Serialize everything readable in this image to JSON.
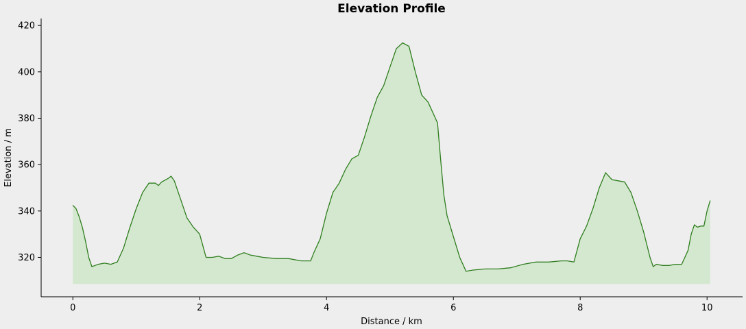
{
  "chart_data": {
    "type": "area",
    "title": "Elevation Profile",
    "xlabel": "Distance / km",
    "ylabel": "Elevation / m",
    "xlim": [
      -0.5,
      10.56
    ],
    "ylim": [
      303,
      423
    ],
    "baseline": 308.5,
    "xticks": [
      0,
      2,
      4,
      6,
      8,
      10
    ],
    "yticks": [
      320,
      340,
      360,
      380,
      400,
      420
    ],
    "grid": false,
    "line_color": "#2e7d1e",
    "fill_color": "#d4e8cf",
    "x": [
      0,
      0.05,
      0.1,
      0.15,
      0.2,
      0.25,
      0.3,
      0.35,
      0.4,
      0.5,
      0.6,
      0.7,
      0.8,
      0.9,
      1.0,
      1.1,
      1.2,
      1.3,
      1.35,
      1.4,
      1.5,
      1.55,
      1.6,
      1.7,
      1.8,
      1.9,
      2.0,
      2.05,
      2.1,
      2.2,
      2.3,
      2.4,
      2.5,
      2.6,
      2.7,
      2.8,
      2.9,
      3.0,
      3.2,
      3.4,
      3.6,
      3.75,
      3.8,
      3.9,
      4.0,
      4.1,
      4.2,
      4.3,
      4.4,
      4.5,
      4.6,
      4.7,
      4.8,
      4.9,
      5.0,
      5.1,
      5.2,
      5.3,
      5.4,
      5.5,
      5.6,
      5.7,
      5.75,
      5.8,
      5.85,
      5.9,
      6.0,
      6.1,
      6.2,
      6.3,
      6.5,
      6.7,
      6.9,
      7.1,
      7.3,
      7.5,
      7.7,
      7.8,
      7.9,
      8.0,
      8.1,
      8.2,
      8.3,
      8.4,
      8.5,
      8.6,
      8.7,
      8.8,
      8.9,
      9.0,
      9.1,
      9.15,
      9.2,
      9.3,
      9.4,
      9.5,
      9.6,
      9.7,
      9.75,
      9.8,
      9.85,
      9.9,
      9.95,
      10.0,
      10.05
    ],
    "values": [
      342.5,
      341,
      337.5,
      333,
      327,
      320,
      316,
      316.5,
      317,
      317.5,
      317,
      318,
      324,
      333,
      341,
      348,
      352,
      352,
      351,
      352.5,
      354,
      355,
      353,
      345,
      337,
      333,
      330,
      325,
      320,
      320,
      320.5,
      319.5,
      319.5,
      321,
      322,
      321,
      320.5,
      320,
      319.5,
      319.5,
      318.5,
      318.5,
      322,
      328,
      339,
      348,
      352,
      358,
      362.5,
      364,
      372,
      381,
      389,
      394,
      402,
      410,
      412.5,
      411,
      400,
      390,
      387,
      381,
      378,
      362,
      347,
      338,
      329,
      320,
      314,
      314.5,
      315,
      315,
      315.5,
      317,
      318,
      318,
      318.5,
      318.5,
      318,
      328,
      333.5,
      341,
      350,
      356.5,
      353.5,
      353,
      352.5,
      348,
      340,
      331,
      320,
      316,
      317,
      316.5,
      316.5,
      317,
      317,
      323,
      330,
      334,
      333,
      333.5,
      333.5,
      340,
      344.5
    ]
  }
}
